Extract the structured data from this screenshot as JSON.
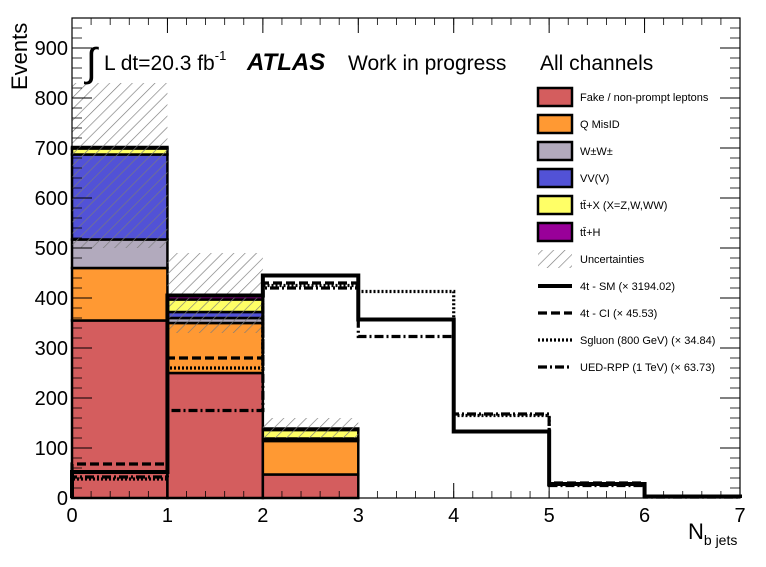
{
  "chart_data": {
    "type": "bar",
    "stacked": true,
    "ylabel": "Events",
    "xlabel_main": "N",
    "xlabel_sub": "b jets",
    "x_bins": [
      0,
      1,
      2,
      3,
      4,
      5,
      6,
      7
    ],
    "xlim": [
      0,
      7
    ],
    "ylim": [
      0,
      960
    ],
    "x_ticks": [
      0,
      1,
      2,
      3,
      4,
      5,
      6,
      7
    ],
    "y_ticks": [
      0,
      100,
      200,
      300,
      400,
      500,
      600,
      700,
      800,
      900
    ],
    "annotations": {
      "lumi_prefix": "L dt=20.3 fb",
      "lumi_exp": "-1",
      "atlas": "ATLAS",
      "status": "Work in progress",
      "channel": "All channels"
    },
    "series": [
      {
        "name": "Fake / non-prompt leptons",
        "color": "#d45d5e",
        "values": [
          355,
          250,
          47,
          0,
          0,
          0,
          0
        ]
      },
      {
        "name": "Q MisID",
        "color": "#ff9933",
        "values": [
          105,
          100,
          67,
          0,
          0,
          0,
          0
        ]
      },
      {
        "name": "W±W±",
        "color": "#b2aabd",
        "values": [
          57,
          10,
          2,
          0,
          0,
          0,
          0
        ]
      },
      {
        "name": "VV(V)",
        "color": "#5252d6",
        "values": [
          170,
          12,
          3,
          0,
          0,
          0,
          0
        ]
      },
      {
        "name": "tt̄+X (X=Z,W,WW)",
        "color": "#ffff66",
        "values": [
          12,
          25,
          17,
          0,
          0,
          0,
          0
        ]
      },
      {
        "name": "tt̄+H",
        "color": "#990099",
        "values": [
          3,
          8,
          3,
          0,
          0,
          0,
          0
        ]
      }
    ],
    "uncertainty": {
      "name": "Uncertainties",
      "upper": [
        830,
        490,
        160,
        0,
        0,
        0,
        0
      ],
      "lower": [
        500,
        330,
        120,
        0,
        0,
        0,
        0
      ]
    },
    "signals": [
      {
        "name": "4t - SM (× 3194.02)",
        "style": "solid",
        "values": [
          52,
          405,
          445,
          357,
          133,
          28,
          3
        ]
      },
      {
        "name": "4t - CI (× 45.53)",
        "style": "dashed",
        "values": [
          68,
          280,
          430,
          357,
          133,
          30,
          3
        ]
      },
      {
        "name": "Sgluon (800 GeV) (× 34.84)",
        "style": "dotted",
        "values": [
          38,
          260,
          425,
          413,
          165,
          28,
          3
        ]
      },
      {
        "name": "UED-RPP (1 TeV) (× 63.73)",
        "style": "dashdot",
        "values": [
          42,
          175,
          420,
          323,
          168,
          25,
          2
        ]
      }
    ]
  }
}
